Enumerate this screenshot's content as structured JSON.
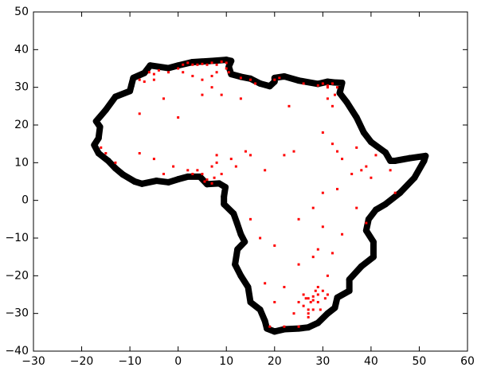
{
  "chart_data": {
    "type": "scatter",
    "xlim": [
      -30,
      60
    ],
    "ylim": [
      -40,
      50
    ],
    "xticks": [
      {
        "value": -30,
        "label": "−30"
      },
      {
        "value": -20,
        "label": "−20"
      },
      {
        "value": -10,
        "label": "−10"
      },
      0,
      10,
      20,
      30,
      40,
      50,
      60
    ],
    "yticks": [
      {
        "value": -40,
        "label": "−40"
      },
      {
        "value": -30,
        "label": "−30"
      },
      {
        "value": -20,
        "label": "−20"
      },
      {
        "value": -10,
        "label": "−10"
      },
      0,
      10,
      20,
      30,
      40,
      50
    ],
    "series": [
      {
        "color": "#000000",
        "marker": "circle",
        "connect": true,
        "x": [
          -5.8,
          -2,
          0,
          3,
          7,
          10,
          11,
          10.5,
          11,
          13,
          15,
          17,
          19,
          20,
          20,
          22,
          25,
          29,
          31,
          32.3,
          34,
          33.5,
          35,
          37,
          38.5,
          40,
          43,
          44,
          45,
          48,
          51.3,
          51,
          49,
          46,
          43,
          41,
          39.5,
          39,
          40.5,
          40.5,
          38,
          35.5,
          35.5,
          33,
          32.5,
          31,
          29,
          27,
          25,
          22,
          20,
          18.4,
          18,
          17,
          15,
          14.5,
          13,
          11.8,
          12.3,
          13.8,
          13,
          12.2,
          11.5,
          9.5,
          9.5,
          9.8,
          8.5,
          6,
          4.5,
          2,
          0,
          -2,
          -4.5,
          -7.5,
          -9,
          -11.5,
          -13,
          -14.5,
          -16.5,
          -17.4,
          -16.5,
          -16.2,
          -17,
          -15,
          -13,
          -10,
          -9.7,
          -9.3,
          -7,
          -5.8
        ],
        "y": [
          35.8,
          35.1,
          35.8,
          36.7,
          37,
          37.3,
          37,
          35.5,
          33.5,
          32.8,
          32.3,
          31,
          30.3,
          31.5,
          32.5,
          32.9,
          31.8,
          30.9,
          31.5,
          31.3,
          31.2,
          28.5,
          26,
          22,
          18,
          15.5,
          12.7,
          10.5,
          10.5,
          11.2,
          11.8,
          10.5,
          6,
          2,
          -1,
          -2.5,
          -5,
          -8,
          -11,
          -15,
          -17.5,
          -21,
          -24,
          -25.8,
          -28.5,
          -30,
          -32.5,
          -33.7,
          -34,
          -34.2,
          -34.8,
          -34,
          -32,
          -29,
          -27,
          -23,
          -20,
          -17,
          -13,
          -11,
          -9,
          -6,
          -3.5,
          -1,
          1,
          3.5,
          4.5,
          4.3,
          6.3,
          6.3,
          5.6,
          4.8,
          5.2,
          4.4,
          5,
          6.9,
          8.5,
          10.5,
          12.5,
          14.7,
          16.5,
          19.5,
          21,
          24,
          27.5,
          29,
          30.5,
          32.5,
          33.8,
          35.8
        ]
      },
      {
        "color": "#ff0000",
        "marker": "square",
        "connect": false,
        "x": [
          -6,
          -5,
          -4,
          -2,
          0,
          1,
          2,
          3,
          4,
          5,
          6,
          7,
          8,
          9,
          10,
          10,
          10.5,
          -8,
          -7,
          -5,
          1,
          3,
          5,
          7,
          8,
          13,
          15,
          20,
          21,
          29,
          30,
          31,
          31,
          32,
          33,
          31,
          32,
          32.5,
          -8,
          -3,
          0,
          5,
          7,
          9,
          13,
          16,
          23,
          26,
          -16,
          -15,
          -13,
          -8,
          -5,
          -3,
          -1,
          2,
          3,
          4,
          5,
          5.5,
          6,
          7,
          7.5,
          8,
          8,
          9,
          11,
          12,
          14,
          7,
          15,
          18,
          22,
          24,
          30,
          32,
          33,
          34,
          37,
          39,
          38,
          36,
          40,
          44,
          41,
          45,
          33,
          30,
          28,
          25,
          30,
          37,
          39,
          34,
          29,
          20,
          15,
          17,
          25,
          28,
          32,
          31,
          18,
          22,
          20,
          26,
          27,
          28,
          27.5,
          28,
          29,
          29,
          30,
          30.5,
          26,
          27,
          28,
          25,
          31,
          26.5,
          28.5,
          29.5,
          27,
          24,
          22,
          25,
          19,
          27,
          29
        ],
        "y": [
          34,
          33.5,
          34.5,
          34,
          35,
          36,
          36.5,
          36,
          36,
          36.2,
          36,
          36.5,
          36,
          36.8,
          36.5,
          35,
          34,
          32,
          31.5,
          32,
          34,
          33,
          32,
          33,
          34,
          32.5,
          32,
          32,
          32.5,
          30.5,
          31,
          30.5,
          30,
          31,
          30,
          27,
          25,
          28,
          23,
          27,
          22,
          28,
          30,
          28,
          27,
          31,
          25,
          31,
          14,
          12.5,
          10,
          12.5,
          11,
          7,
          9,
          8,
          7,
          8,
          7,
          5,
          5.5,
          9,
          6,
          10,
          12,
          7,
          11,
          9,
          13,
          4.5,
          12,
          8,
          12,
          13,
          18,
          15,
          13,
          11,
          14,
          9,
          8,
          7,
          6,
          8,
          12,
          2,
          3,
          2,
          -2,
          -5,
          -7,
          -2,
          -6,
          -9,
          -13,
          -12,
          -5,
          -10,
          -17,
          -15,
          -14,
          -20,
          -22,
          -23,
          -27,
          -25,
          -26,
          -25.5,
          -27,
          -26.5,
          -25,
          -27,
          -24,
          -26,
          -28,
          -29,
          -29,
          -27,
          -25,
          -26,
          -24,
          -29,
          -30,
          -30,
          -33.5,
          -33.5,
          -33.5,
          -31,
          -23
        ]
      }
    ]
  }
}
